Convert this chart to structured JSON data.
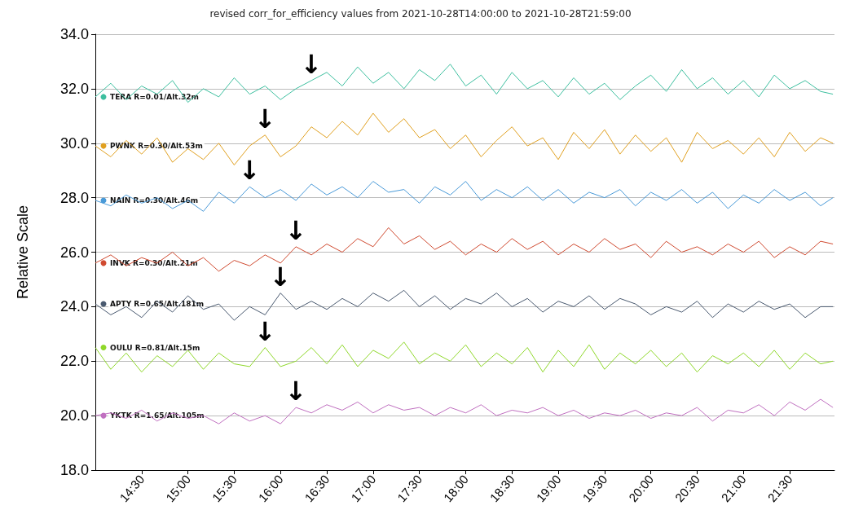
{
  "chart_data": {
    "type": "line",
    "title": "revised corr_for_efficiency values from 2021-10-28T14:00:00 to 2021-10-28T21:59:00",
    "ylabel": "Relative Scale",
    "x": [
      "2021-10-28T14:00",
      "2021-10-28T14:10",
      "2021-10-28T14:20",
      "2021-10-28T14:30",
      "2021-10-28T14:40",
      "2021-10-28T14:50",
      "2021-10-28T15:00",
      "2021-10-28T15:10",
      "2021-10-28T15:20",
      "2021-10-28T15:30",
      "2021-10-28T15:40",
      "2021-10-28T15:50",
      "2021-10-28T16:00",
      "2021-10-28T16:10",
      "2021-10-28T16:20",
      "2021-10-28T16:30",
      "2021-10-28T16:40",
      "2021-10-28T16:50",
      "2021-10-28T17:00",
      "2021-10-28T17:10",
      "2021-10-28T17:20",
      "2021-10-28T17:30",
      "2021-10-28T17:40",
      "2021-10-28T17:50",
      "2021-10-28T18:00",
      "2021-10-28T18:10",
      "2021-10-28T18:20",
      "2021-10-28T18:30",
      "2021-10-28T18:40",
      "2021-10-28T18:50",
      "2021-10-28T19:00",
      "2021-10-28T19:10",
      "2021-10-28T19:20",
      "2021-10-28T19:30",
      "2021-10-28T19:40",
      "2021-10-28T19:50",
      "2021-10-28T20:00",
      "2021-10-28T20:10",
      "2021-10-28T20:20",
      "2021-10-28T20:30",
      "2021-10-28T20:40",
      "2021-10-28T20:50",
      "2021-10-28T21:00",
      "2021-10-28T21:10",
      "2021-10-28T21:20",
      "2021-10-28T21:30",
      "2021-10-28T21:40",
      "2021-10-28T21:50",
      "2021-10-28T21:58"
    ],
    "series": [
      {
        "name": "TERA R=0.01/Alt.32m",
        "color": "#3dbf9f",
        "values": [
          31.7,
          32.2,
          31.6,
          32.1,
          31.8,
          32.3,
          31.5,
          32.0,
          31.7,
          32.4,
          31.8,
          32.1,
          31.6,
          32.0,
          32.3,
          32.6,
          32.1,
          32.8,
          32.2,
          32.6,
          32.0,
          32.7,
          32.3,
          32.9,
          32.1,
          32.5,
          31.8,
          32.6,
          32.0,
          32.3,
          31.7,
          32.4,
          31.8,
          32.2,
          31.6,
          32.1,
          32.5,
          31.9,
          32.7,
          32.0,
          32.4,
          31.8,
          32.3,
          31.7,
          32.5,
          32.0,
          32.3,
          31.9,
          31.8
        ]
      },
      {
        "name": "PWNK R=0.30/Alt.53m",
        "color": "#e0a020",
        "values": [
          29.9,
          29.5,
          30.1,
          29.6,
          30.2,
          29.3,
          29.8,
          29.4,
          30.0,
          29.2,
          29.9,
          30.3,
          29.5,
          29.9,
          30.6,
          30.2,
          30.8,
          30.3,
          31.1,
          30.4,
          30.9,
          30.2,
          30.5,
          29.8,
          30.3,
          29.5,
          30.1,
          30.6,
          29.9,
          30.2,
          29.4,
          30.4,
          29.8,
          30.5,
          29.6,
          30.3,
          29.7,
          30.2,
          29.3,
          30.4,
          29.8,
          30.1,
          29.6,
          30.2,
          29.5,
          30.4,
          29.7,
          30.2,
          30.0
        ]
      },
      {
        "name": "NAIN R=0.30/Alt.46m",
        "color": "#4a9ad8",
        "values": [
          27.9,
          27.7,
          28.1,
          27.8,
          28.0,
          27.6,
          27.9,
          27.5,
          28.2,
          27.8,
          28.4,
          28.0,
          28.3,
          27.9,
          28.5,
          28.1,
          28.4,
          28.0,
          28.6,
          28.2,
          28.3,
          27.8,
          28.4,
          28.1,
          28.6,
          27.9,
          28.3,
          28.0,
          28.4,
          27.9,
          28.3,
          27.8,
          28.2,
          28.0,
          28.3,
          27.7,
          28.2,
          27.9,
          28.3,
          27.8,
          28.2,
          27.6,
          28.1,
          27.8,
          28.3,
          27.9,
          28.2,
          27.7,
          28.0
        ]
      },
      {
        "name": "INVK R=0.30/Alt.21m",
        "color": "#d04a30",
        "values": [
          25.6,
          25.9,
          25.5,
          25.8,
          25.6,
          26.0,
          25.5,
          25.8,
          25.3,
          25.7,
          25.5,
          25.9,
          25.6,
          26.2,
          25.9,
          26.3,
          26.0,
          26.5,
          26.2,
          26.9,
          26.3,
          26.6,
          26.1,
          26.4,
          25.9,
          26.3,
          26.0,
          26.5,
          26.1,
          26.4,
          25.9,
          26.3,
          26.0,
          26.5,
          26.1,
          26.3,
          25.8,
          26.4,
          26.0,
          26.2,
          25.9,
          26.3,
          26.0,
          26.4,
          25.8,
          26.2,
          25.9,
          26.4,
          26.3
        ]
      },
      {
        "name": "APTY R=0.65/Alt.181m",
        "color": "#4a5a70",
        "values": [
          24.1,
          23.7,
          24.0,
          23.6,
          24.2,
          23.8,
          24.4,
          23.9,
          24.1,
          23.5,
          24.0,
          23.7,
          24.5,
          23.9,
          24.2,
          23.9,
          24.3,
          24.0,
          24.5,
          24.2,
          24.6,
          24.0,
          24.4,
          23.9,
          24.3,
          24.1,
          24.5,
          24.0,
          24.3,
          23.8,
          24.2,
          24.0,
          24.4,
          23.9,
          24.3,
          24.1,
          23.7,
          24.0,
          23.8,
          24.2,
          23.6,
          24.1,
          23.8,
          24.2,
          23.9,
          24.1,
          23.6,
          24.0,
          24.0
        ]
      },
      {
        "name": "OULU R=0.81/Alt.15m",
        "color": "#8fd82a",
        "values": [
          22.5,
          21.7,
          22.3,
          21.6,
          22.2,
          21.8,
          22.4,
          21.7,
          22.3,
          21.9,
          21.8,
          22.5,
          21.8,
          22.0,
          22.5,
          21.9,
          22.6,
          21.8,
          22.4,
          22.1,
          22.7,
          21.9,
          22.3,
          22.0,
          22.6,
          21.8,
          22.3,
          21.9,
          22.5,
          21.6,
          22.4,
          21.8,
          22.6,
          21.7,
          22.3,
          21.9,
          22.4,
          21.8,
          22.3,
          21.6,
          22.2,
          21.9,
          22.3,
          21.8,
          22.4,
          21.7,
          22.3,
          21.9,
          22.0
        ]
      },
      {
        "name": "YKTK R=1.65/Alt.105m",
        "color": "#c070c0",
        "values": [
          20.0,
          20.1,
          19.9,
          20.2,
          19.8,
          20.1,
          19.9,
          20.0,
          19.7,
          20.1,
          19.8,
          20.0,
          19.7,
          20.3,
          20.1,
          20.4,
          20.2,
          20.5,
          20.1,
          20.4,
          20.2,
          20.3,
          20.0,
          20.3,
          20.1,
          20.4,
          20.0,
          20.2,
          20.1,
          20.3,
          20.0,
          20.2,
          19.9,
          20.1,
          20.0,
          20.2,
          19.9,
          20.1,
          20.0,
          20.3,
          19.8,
          20.2,
          20.1,
          20.4,
          20.0,
          20.5,
          20.2,
          20.6,
          20.3
        ]
      }
    ],
    "xlim": [
      "2021-10-28T14:00",
      "2021-10-28T21:59"
    ],
    "xticks": [
      {
        "value": "2021-10-28T14:30",
        "label": "14:30"
      },
      {
        "value": "2021-10-28T15:00",
        "label": "15:00"
      },
      {
        "value": "2021-10-28T15:30",
        "label": "15:30"
      },
      {
        "value": "2021-10-28T16:00",
        "label": "16:00"
      },
      {
        "value": "2021-10-28T16:30",
        "label": "16:30"
      },
      {
        "value": "2021-10-28T17:00",
        "label": "17:00"
      },
      {
        "value": "2021-10-28T17:30",
        "label": "17:30"
      },
      {
        "value": "2021-10-28T18:00",
        "label": "18:00"
      },
      {
        "value": "2021-10-28T18:30",
        "label": "18:30"
      },
      {
        "value": "2021-10-28T19:00",
        "label": "19:00"
      },
      {
        "value": "2021-10-28T19:30",
        "label": "19:30"
      },
      {
        "value": "2021-10-28T20:00",
        "label": "20:00"
      },
      {
        "value": "2021-10-28T20:30",
        "label": "20:30"
      },
      {
        "value": "2021-10-28T21:00",
        "label": "21:00"
      },
      {
        "value": "2021-10-28T21:30",
        "label": "21:30"
      }
    ],
    "ylim": [
      18,
      34
    ],
    "yticks": [
      {
        "value": 18,
        "label": "18.0"
      },
      {
        "value": 20,
        "label": "20.0"
      },
      {
        "value": 22,
        "label": "22.0"
      },
      {
        "value": 24,
        "label": "24.0"
      },
      {
        "value": 26,
        "label": "26.0"
      },
      {
        "value": 28,
        "label": "28.0"
      },
      {
        "value": 30,
        "label": "30.0"
      },
      {
        "value": 32,
        "label": "32.0"
      },
      {
        "value": 34,
        "label": "34.0"
      }
    ],
    "annotations": [
      {
        "text": "↓",
        "x": "2021-10-28T16:20",
        "y": 32.3
      },
      {
        "text": "↓",
        "x": "2021-10-28T15:50",
        "y": 30.3
      },
      {
        "text": "↓",
        "x": "2021-10-28T15:40",
        "y": 28.4
      },
      {
        "text": "↓",
        "x": "2021-10-28T16:10",
        "y": 26.2
      },
      {
        "text": "↓",
        "x": "2021-10-28T16:00",
        "y": 24.5
      },
      {
        "text": "↓",
        "x": "2021-10-28T15:50",
        "y": 22.5
      },
      {
        "text": "↓",
        "x": "2021-10-28T16:10",
        "y": 20.3
      }
    ],
    "grid": "y",
    "legend": "left",
    "marker": "none",
    "line_style": "solid"
  }
}
